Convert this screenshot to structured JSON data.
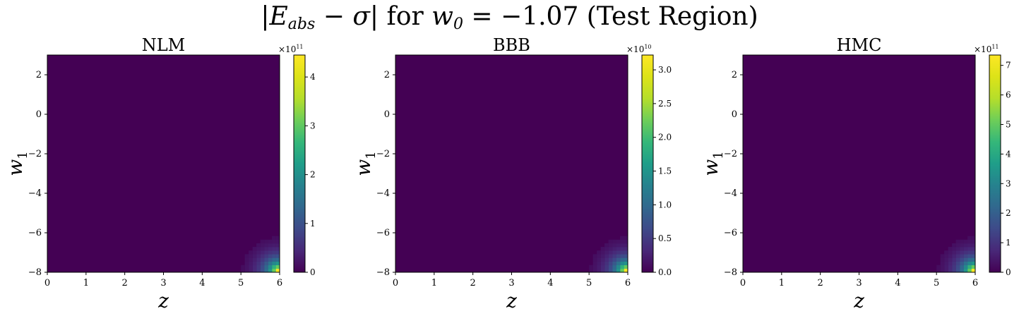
{
  "figure": {
    "title_prefix": "|",
    "title_var": "E",
    "title_sub": "abs",
    "title_mid": " − ",
    "title_sigma": "σ",
    "title_bar": "|",
    "title_for": " for ",
    "title_w": "w",
    "title_w_sub": "0",
    "title_rest": " = −1.07 (Test Region)"
  },
  "chart_data": [
    {
      "type": "heatmap",
      "title": "NLM",
      "xlabel": "z",
      "ylabel": "w",
      "ylabel_sub": "1",
      "xlim": [
        0,
        6
      ],
      "ylim": [
        -8,
        3
      ],
      "x_ticks": [
        "0",
        "1",
        "2",
        "3",
        "4",
        "5",
        "6"
      ],
      "y_ticks": [
        "2",
        "0",
        "−2",
        "−4",
        "−6",
        "−8"
      ],
      "colorbar": {
        "min": 0,
        "max": 4.45,
        "ticks": [
          "0",
          "1",
          "2",
          "3",
          "4"
        ],
        "scale_label": "×10",
        "scale_exp": "11"
      },
      "hot_corner": {
        "x": 6,
        "y": -8,
        "max_value": 4.45
      },
      "background_value": 0
    },
    {
      "type": "heatmap",
      "title": "BBB",
      "xlabel": "z",
      "ylabel": "w",
      "ylabel_sub": "1",
      "xlim": [
        0,
        6
      ],
      "ylim": [
        -8,
        3
      ],
      "x_ticks": [
        "0",
        "1",
        "2",
        "3",
        "4",
        "5",
        "6"
      ],
      "y_ticks": [
        "2",
        "0",
        "−2",
        "−4",
        "−6",
        "−8"
      ],
      "colorbar": {
        "min": 0,
        "max": 3.22,
        "ticks": [
          "0.0",
          "0.5",
          "1.0",
          "1.5",
          "2.0",
          "2.5",
          "3.0"
        ],
        "scale_label": "×10",
        "scale_exp": "10"
      },
      "hot_corner": {
        "x": 6,
        "y": -8,
        "max_value": 3.22
      },
      "background_value": 0
    },
    {
      "type": "heatmap",
      "title": "HMC",
      "xlabel": "z",
      "ylabel": "w",
      "ylabel_sub": "1",
      "xlim": [
        0,
        6
      ],
      "ylim": [
        -8,
        3
      ],
      "x_ticks": [
        "0",
        "1",
        "2",
        "3",
        "4",
        "5",
        "6"
      ],
      "y_ticks": [
        "2",
        "0",
        "−2",
        "−4",
        "−6",
        "−8"
      ],
      "colorbar": {
        "min": 0,
        "max": 7.35,
        "ticks": [
          "0",
          "1",
          "2",
          "3",
          "4",
          "5",
          "6",
          "7"
        ],
        "scale_label": "×10",
        "scale_exp": "11"
      },
      "hot_corner": {
        "x": 6,
        "y": -8,
        "max_value": 7.35
      },
      "background_value": 0
    }
  ]
}
